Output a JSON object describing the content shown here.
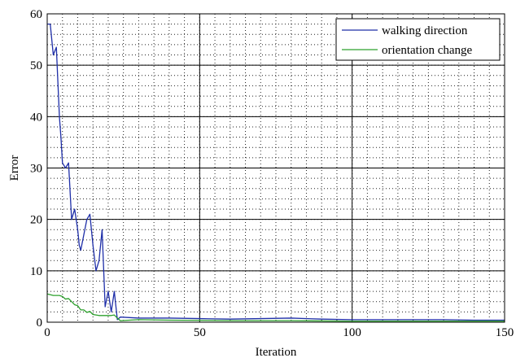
{
  "chart_data": {
    "type": "line",
    "title": "",
    "xlabel": "Iteration",
    "ylabel": "Error",
    "xlim": [
      0,
      150
    ],
    "ylim": [
      0,
      60
    ],
    "xticks": [
      0,
      50,
      100,
      150
    ],
    "yticks": [
      0,
      10,
      20,
      30,
      40,
      50,
      60
    ],
    "x_minor_step": 5,
    "y_minor_step": 2,
    "grid": "major solid, minor dotted",
    "legend_position": "top-right",
    "series": [
      {
        "name": "walking direction",
        "color": "#1f2fa8",
        "x": [
          0,
          1,
          2,
          3,
          4,
          4.5,
          5,
          6,
          7,
          8,
          9,
          10,
          10.5,
          11,
          12,
          13,
          14,
          15,
          16,
          17,
          18,
          19,
          20,
          21,
          22,
          23,
          24,
          30,
          40,
          50,
          60,
          70,
          80,
          90,
          100,
          110,
          120,
          130,
          140,
          150
        ],
        "values": [
          58,
          58,
          52,
          53.5,
          40,
          36,
          31,
          30,
          31,
          20,
          22,
          18,
          15,
          14,
          17,
          20,
          21,
          15,
          10,
          12,
          18,
          3,
          6,
          2,
          6,
          0.5,
          1,
          0.8,
          0.8,
          0.7,
          0.6,
          0.7,
          0.8,
          0.6,
          0.5,
          0.5,
          0.5,
          0.5,
          0.4,
          0.4
        ]
      },
      {
        "name": "orientation change",
        "color": "#2ca02c",
        "x": [
          0,
          2,
          4,
          5,
          6,
          7,
          8,
          9,
          10,
          11,
          12,
          13,
          14,
          15,
          17,
          19,
          21,
          22,
          23,
          24,
          30,
          40,
          60,
          80,
          100,
          120,
          150
        ],
        "values": [
          5.5,
          5.2,
          5.2,
          5,
          4.5,
          4.6,
          4,
          3.4,
          3.2,
          2.4,
          2.4,
          1.9,
          2.1,
          1.5,
          1.3,
          1.3,
          1.3,
          1.4,
          0.8,
          0.3,
          0.5,
          0.4,
          0.3,
          0.3,
          0.2,
          0.2,
          0.2
        ]
      }
    ]
  }
}
